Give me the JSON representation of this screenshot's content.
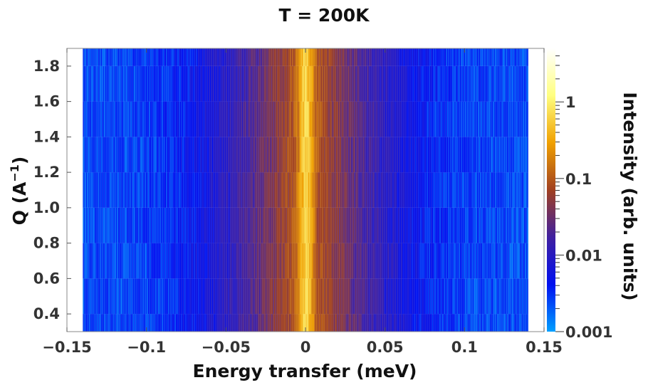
{
  "chart_data": {
    "type": "heatmap",
    "title": "T = 200K",
    "xlabel": "Energy transfer (meV)",
    "ylabel": "Q (A",
    "ylabel_sup": "−1",
    "ylabel_close": ")",
    "colorbar_label": "Intensity (arb. units)",
    "xlim": [
      -0.15,
      0.15
    ],
    "ylim": [
      0.3,
      1.9
    ],
    "x_ticks": [
      -0.15,
      -0.1,
      -0.05,
      0,
      0.05,
      0.1,
      0.15
    ],
    "x_tick_labels": [
      "−0.15",
      "−0.1",
      "−0.05",
      "0",
      "0.05",
      "0.1",
      "0.15"
    ],
    "y_ticks": [
      0.4,
      0.6,
      0.8,
      1.0,
      1.2,
      1.4,
      1.6,
      1.8
    ],
    "y_tick_labels": [
      "0.4",
      "0.6",
      "0.8",
      "1.0",
      "1.2",
      "1.4",
      "1.6",
      "1.8"
    ],
    "data_x_range": [
      -0.14,
      0.14
    ],
    "q_bins": [
      0.3,
      0.4,
      0.6,
      0.8,
      1.0,
      1.2,
      1.4,
      1.6,
      1.8,
      1.9
    ],
    "color_scale": "log",
    "color_range": [
      0.001,
      5
    ],
    "colorbar_ticks": [
      0.001,
      0.01,
      0.1,
      1
    ],
    "colorbar_tick_labels": [
      "0.001",
      "0.01",
      "0.1",
      "1"
    ],
    "peak_center_meV": 0,
    "colormap": [
      "#00a0ff",
      "#0010f0",
      "#4020a0",
      "#a04020",
      "#f0a000",
      "#ffff80",
      "#ffffff"
    ]
  }
}
